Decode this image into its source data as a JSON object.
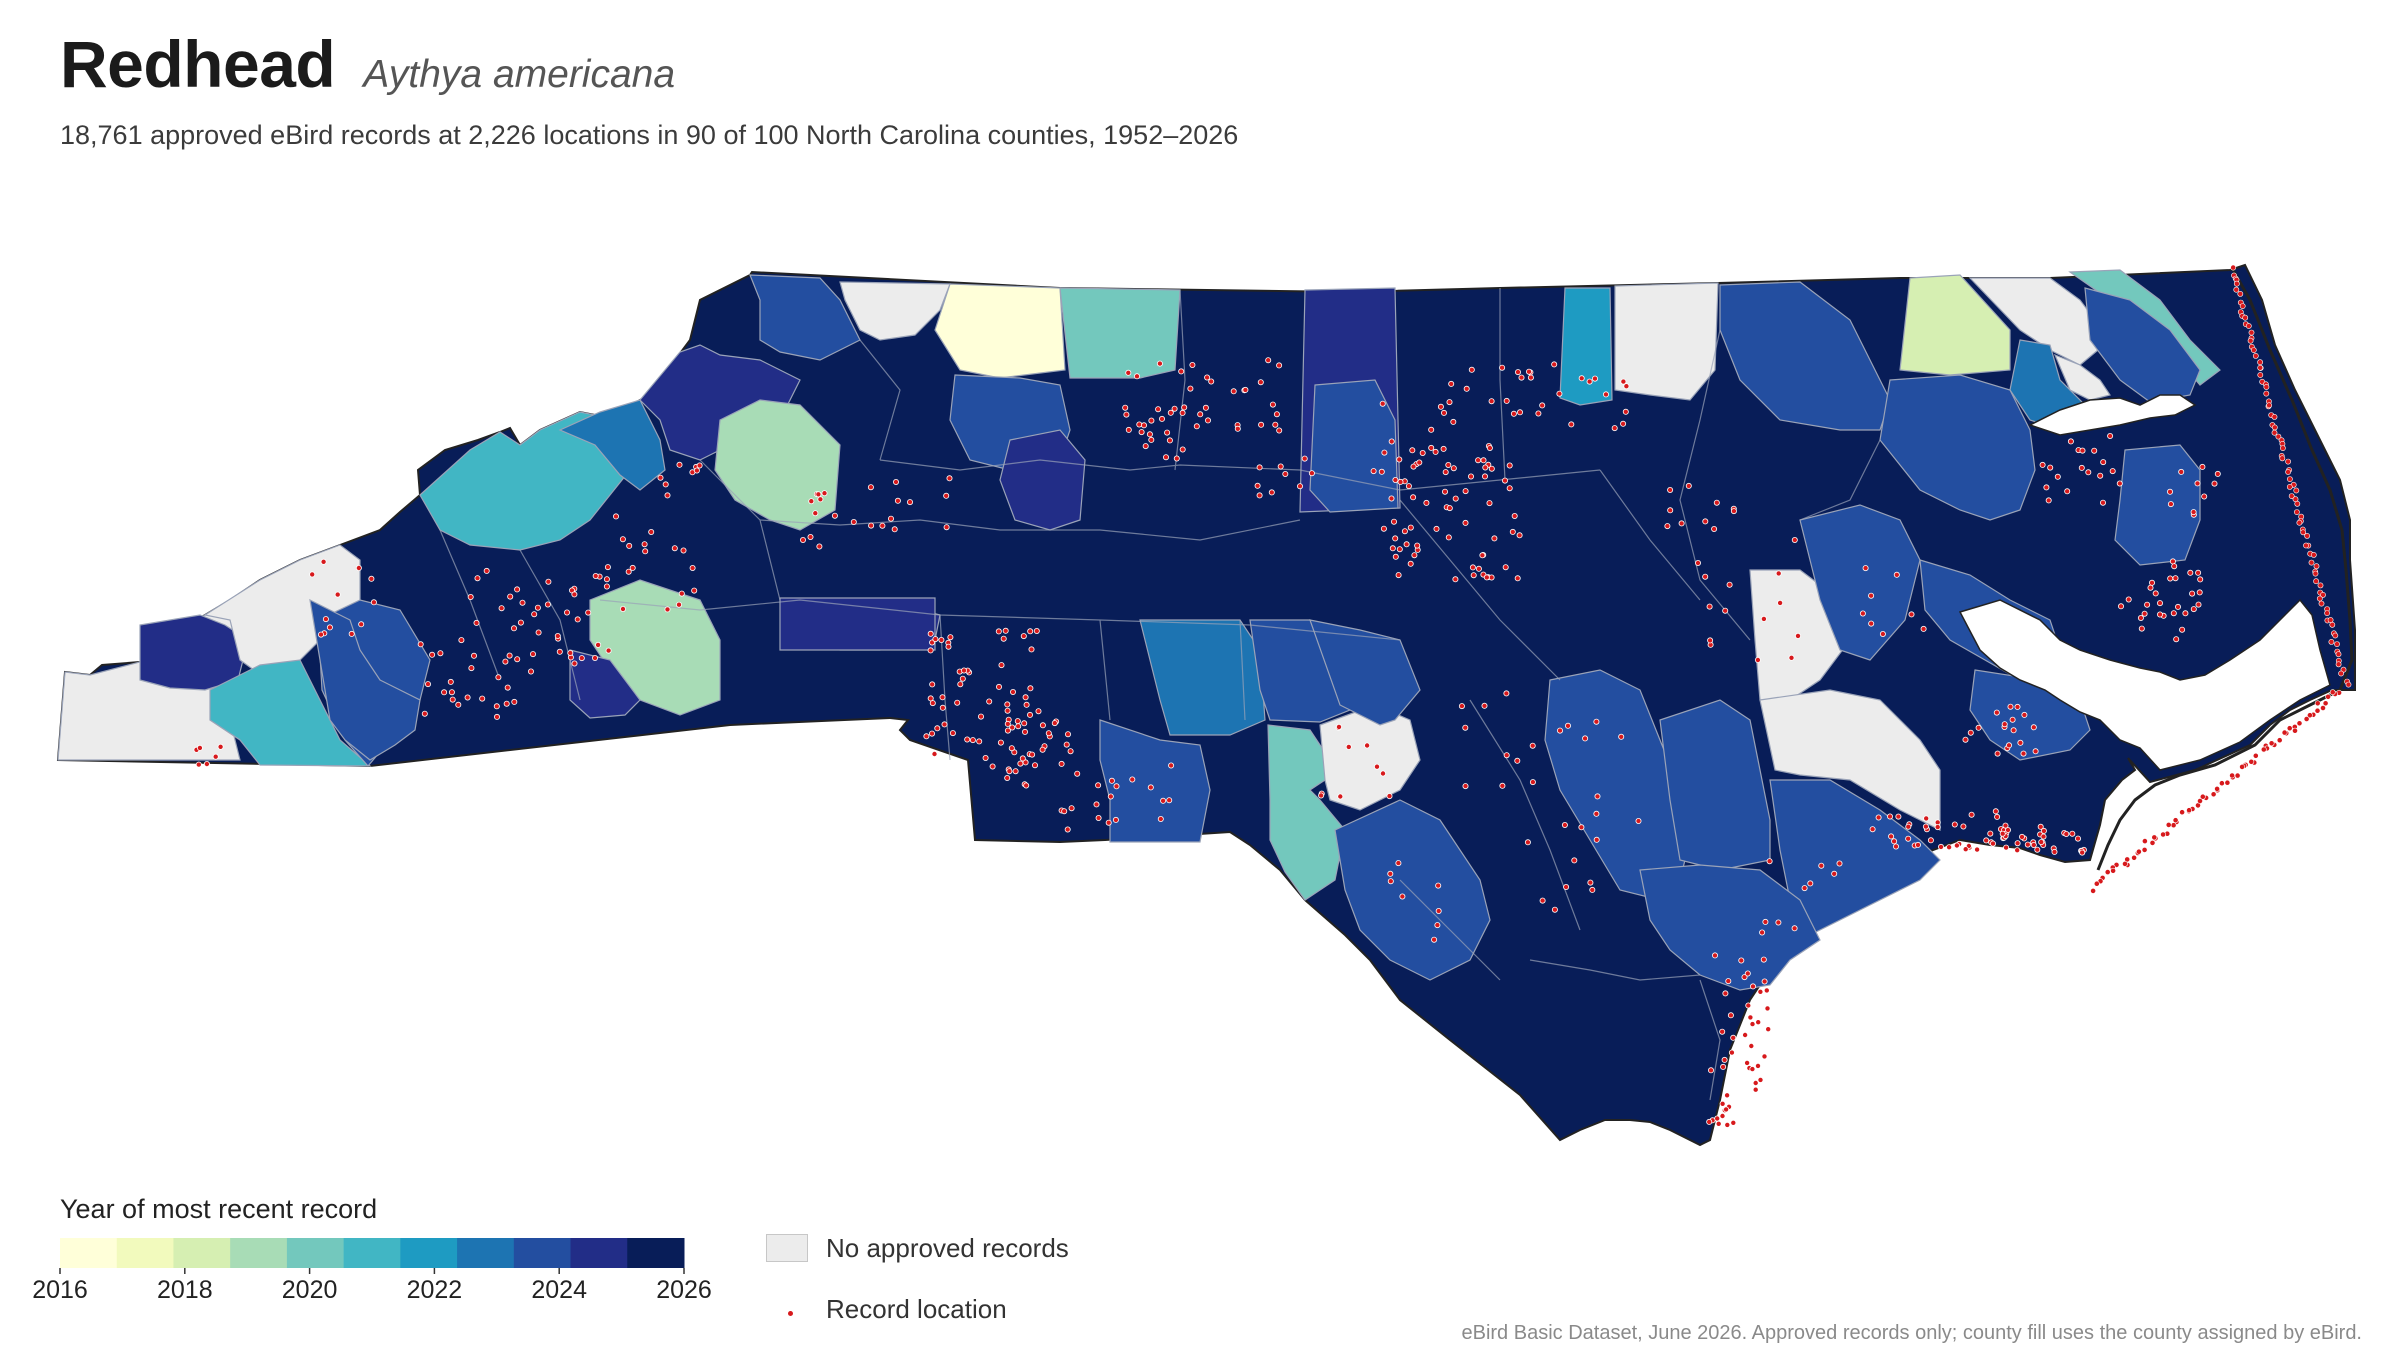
{
  "header": {
    "title": "Redhead",
    "scientific_name": "Aythya americana",
    "subtitle": "18,761 approved eBird records at 2,226 locations in 90 of 100 North Carolina counties, 1952–2026"
  },
  "legend": {
    "title": "Year of most recent record",
    "tick_labels": [
      "2016",
      "2018",
      "2020",
      "2022",
      "2024",
      "2026"
    ],
    "bins": [
      {
        "color": "#ffffd9"
      },
      {
        "color": "#f2fabd"
      },
      {
        "color": "#d6efb2"
      },
      {
        "color": "#a8dcb6"
      },
      {
        "color": "#73c8bd"
      },
      {
        "color": "#41b6c4"
      },
      {
        "color": "#1e9bc2"
      },
      {
        "color": "#1d74b2"
      },
      {
        "color": "#234ea0"
      },
      {
        "color": "#222d87"
      },
      {
        "color": "#081d58"
      }
    ],
    "no_records_label": "No approved records",
    "no_records_color": "#ececec",
    "record_location_label": "Record location",
    "record_dot_color": "#d7191c"
  },
  "source_note": "eBird Basic Dataset, June 2026. Approved records only; county fill uses the county assigned by eBird."
}
